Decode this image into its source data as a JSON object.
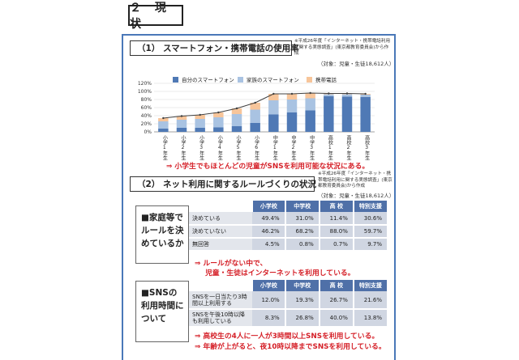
{
  "heading": "２ 現 状",
  "section1": {
    "title": "（1） スマートフォン・携帯電話の使用率",
    "source": "※平成26年度「インターネット・携帯電話利用に関する実態調査」(東京都教育委員会)から作成",
    "sample": "（対象：児童・生徒18,612人）",
    "callout": "⇒ 小学生でもほとんどの児童がSNSを利用可能な状況にある。"
  },
  "chart_data": {
    "type": "bar",
    "stacked": true,
    "categories": [
      "小学1年生",
      "小学2年生",
      "小学3年生",
      "小学4年生",
      "小学5年生",
      "小学6年生",
      "中学1年生",
      "中学2年生",
      "中学3年生",
      "高校1年生",
      "高校2年生",
      "高校3年生"
    ],
    "series": [
      {
        "name": "自分のスマートフォン",
        "color": "#4f79b5",
        "values": [
          8,
          10,
          10,
          11,
          14,
          22,
          43,
          48,
          53,
          88,
          87,
          86
        ]
      },
      {
        "name": "家族のスマートフォン",
        "color": "#a9c3e2",
        "values": [
          18,
          20,
          22,
          25,
          30,
          33,
          35,
          32,
          30,
          5,
          6,
          6
        ]
      },
      {
        "name": "携帯電話",
        "color": "#f7c59a",
        "values": [
          8,
          9,
          10,
          12,
          14,
          17,
          16,
          14,
          13,
          2,
          2,
          2
        ]
      }
    ],
    "line_values": [
      34,
      39,
      42,
      48,
      58,
      72,
      94,
      94,
      96,
      95,
      95,
      94
    ],
    "y_ticks": [
      "120%",
      "100%",
      "80%",
      "60%",
      "40%",
      "20%",
      "0%"
    ],
    "ylim": [
      0,
      120
    ],
    "legend_position": "top",
    "grid": true
  },
  "section2": {
    "title": "（2） ネット利用に関するルールづくりの状況",
    "source": "※平成26年度「インターネット・携帯電話利用に関する実態調査」(東京都教育委員会)から作成",
    "sample": "（対象：児童・生徒18,612人）",
    "family_label_lines": [
      "■家庭等で",
      "ルールを決",
      "めているか"
    ],
    "columns": [
      "小学校",
      "中学校",
      "高 校",
      "特別支援"
    ],
    "rules_rows": [
      {
        "label": "決めている",
        "values": [
          "49.4%",
          "31.0%",
          "11.4%",
          "30.6%"
        ]
      },
      {
        "label": "決めていない",
        "values": [
          "46.2%",
          "68.2%",
          "88.0%",
          "59.7%"
        ]
      },
      {
        "label": "無回答",
        "values": [
          "4.5%",
          "0.8%",
          "0.7%",
          "9.7%"
        ]
      }
    ],
    "rules_callout_1": "⇒ ルールがない中で、",
    "rules_callout_2": "児童・生徒はインターネットを利用している。",
    "sns_label_lines": [
      "■SNSの",
      "利用時間に",
      "ついて"
    ],
    "sns_rows": [
      {
        "label_lines": [
          "SNSを一日当たり3時",
          "間以上利用する"
        ],
        "values": [
          "12.0%",
          "19.3%",
          "26.7%",
          "21.6%"
        ]
      },
      {
        "label_lines": [
          "SNSを午後10時以降",
          "も利用している"
        ],
        "values": [
          "8.3%",
          "26.8%",
          "40.0%",
          "13.8%"
        ]
      }
    ],
    "sns_callout_1": "⇒ 高校生の4人に一人が3時間以上SNSを利用している。",
    "sns_callout_2": "⇒ 年齢が上がると、夜10時以降までSNSを利用している。"
  }
}
